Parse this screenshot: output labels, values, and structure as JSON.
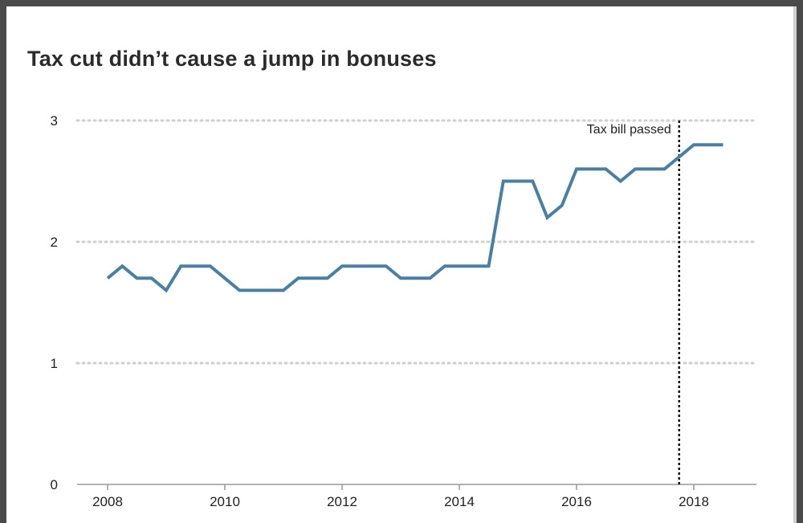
{
  "chart_data": {
    "type": "line",
    "title": "Tax cut didn’t cause a jump in bonuses",
    "xlabel": "",
    "ylabel": "",
    "xlim": [
      2008,
      2019
    ],
    "ylim": [
      0,
      3
    ],
    "grid": true,
    "x_ticks": [
      "2008",
      "2010",
      "2012",
      "2014",
      "2016",
      "2018"
    ],
    "y_ticks": [
      "0",
      "1",
      "2",
      "3"
    ],
    "series": [
      {
        "color": "#4a7fa3",
        "points": [
          [
            2008.0,
            1.7
          ],
          [
            2008.25,
            1.8
          ],
          [
            2008.5,
            1.7
          ],
          [
            2008.75,
            1.7
          ],
          [
            2009.0,
            1.6
          ],
          [
            2009.25,
            1.8
          ],
          [
            2009.5,
            1.8
          ],
          [
            2009.75,
            1.8
          ],
          [
            2010.0,
            1.7
          ],
          [
            2010.25,
            1.6
          ],
          [
            2010.5,
            1.6
          ],
          [
            2010.75,
            1.6
          ],
          [
            2011.0,
            1.6
          ],
          [
            2011.25,
            1.7
          ],
          [
            2011.5,
            1.7
          ],
          [
            2011.75,
            1.7
          ],
          [
            2012.0,
            1.8
          ],
          [
            2012.25,
            1.8
          ],
          [
            2012.5,
            1.8
          ],
          [
            2012.75,
            1.8
          ],
          [
            2013.0,
            1.7
          ],
          [
            2013.25,
            1.7
          ],
          [
            2013.5,
            1.7
          ],
          [
            2013.75,
            1.8
          ],
          [
            2014.0,
            1.8
          ],
          [
            2014.25,
            1.8
          ],
          [
            2014.5,
            1.8
          ],
          [
            2014.75,
            2.5
          ],
          [
            2015.0,
            2.5
          ],
          [
            2015.25,
            2.5
          ],
          [
            2015.5,
            2.2
          ],
          [
            2015.75,
            2.3
          ],
          [
            2016.0,
            2.6
          ],
          [
            2016.25,
            2.6
          ],
          [
            2016.5,
            2.6
          ],
          [
            2016.75,
            2.5
          ],
          [
            2017.0,
            2.6
          ],
          [
            2017.25,
            2.6
          ],
          [
            2017.5,
            2.6
          ],
          [
            2017.75,
            2.7
          ],
          [
            2018.0,
            2.8
          ],
          [
            2018.25,
            2.8
          ],
          [
            2018.5,
            2.8
          ]
        ]
      }
    ],
    "annotations": [
      {
        "type": "vline",
        "x": 2017.75,
        "label": "Tax bill passed",
        "style": "dotted"
      }
    ]
  }
}
